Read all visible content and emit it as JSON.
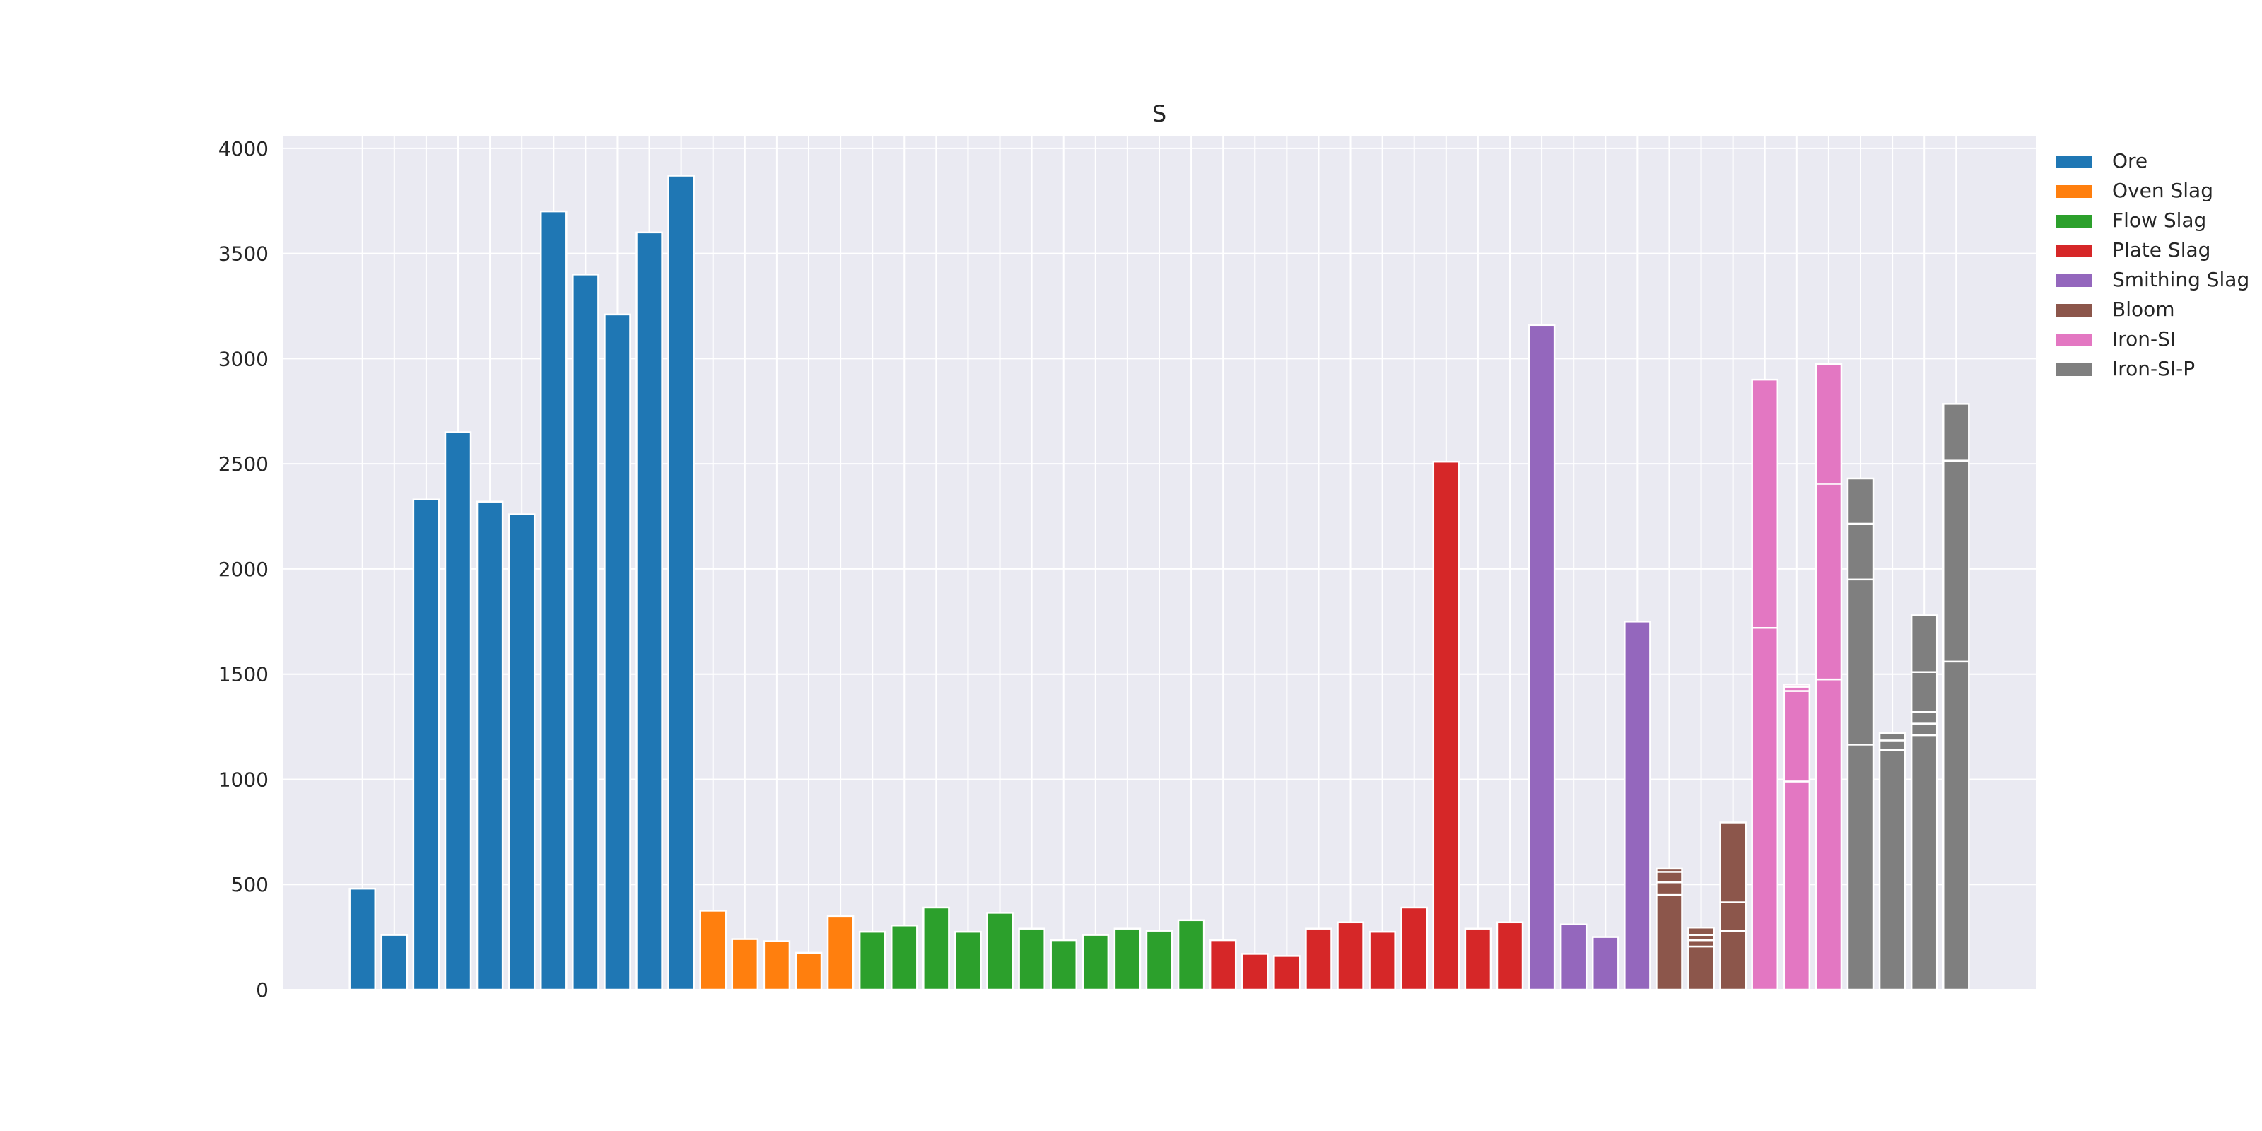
{
  "chart_data": {
    "type": "bar",
    "title": "S",
    "xlabel": "",
    "ylabel": "",
    "ylim": [
      0,
      4060
    ],
    "xlim": [
      -2.5,
      52.5
    ],
    "yticks": [
      0,
      500,
      1000,
      1500,
      2000,
      2500,
      3000,
      3500,
      4000
    ],
    "grid": true,
    "legend_position": "outside-right-top",
    "colors": {
      "Ore": "#1f77b4",
      "Oven Slag": "#ff7f0e",
      "Flow Slag": "#2ca02c",
      "Plate Slag": "#d62728",
      "Smithing Slag": "#9467bd",
      "Bloom": "#8c564b",
      "Iron-SI": "#e377c2",
      "Iron-SI-P": "#7f7f7f"
    },
    "legend": [
      "Ore",
      "Oven Slag",
      "Flow Slag",
      "Plate Slag",
      "Smithing Slag",
      "Bloom",
      "Iron-SI",
      "Iron-SI-P"
    ],
    "bars": [
      {
        "series": "Ore",
        "segments": [
          480
        ]
      },
      {
        "series": "Ore",
        "segments": [
          260
        ]
      },
      {
        "series": "Ore",
        "segments": [
          2330
        ]
      },
      {
        "series": "Ore",
        "segments": [
          2650
        ]
      },
      {
        "series": "Ore",
        "segments": [
          2320
        ]
      },
      {
        "series": "Ore",
        "segments": [
          2260
        ]
      },
      {
        "series": "Ore",
        "segments": [
          3700
        ]
      },
      {
        "series": "Ore",
        "segments": [
          3400
        ]
      },
      {
        "series": "Ore",
        "segments": [
          3210
        ]
      },
      {
        "series": "Ore",
        "segments": [
          3600
        ]
      },
      {
        "series": "Ore",
        "segments": [
          3870
        ]
      },
      {
        "series": "Oven Slag",
        "segments": [
          375
        ]
      },
      {
        "series": "Oven Slag",
        "segments": [
          240
        ]
      },
      {
        "series": "Oven Slag",
        "segments": [
          230
        ]
      },
      {
        "series": "Oven Slag",
        "segments": [
          175
        ]
      },
      {
        "series": "Oven Slag",
        "segments": [
          350
        ]
      },
      {
        "series": "Flow Slag",
        "segments": [
          275
        ]
      },
      {
        "series": "Flow Slag",
        "segments": [
          305
        ]
      },
      {
        "series": "Flow Slag",
        "segments": [
          390
        ]
      },
      {
        "series": "Flow Slag",
        "segments": [
          275
        ]
      },
      {
        "series": "Flow Slag",
        "segments": [
          365
        ]
      },
      {
        "series": "Flow Slag",
        "segments": [
          290
        ]
      },
      {
        "series": "Flow Slag",
        "segments": [
          235
        ]
      },
      {
        "series": "Flow Slag",
        "segments": [
          260
        ]
      },
      {
        "series": "Flow Slag",
        "segments": [
          290
        ]
      },
      {
        "series": "Flow Slag",
        "segments": [
          280
        ]
      },
      {
        "series": "Flow Slag",
        "segments": [
          330
        ]
      },
      {
        "series": "Plate Slag",
        "segments": [
          235
        ]
      },
      {
        "series": "Plate Slag",
        "segments": [
          170
        ]
      },
      {
        "series": "Plate Slag",
        "segments": [
          160
        ]
      },
      {
        "series": "Plate Slag",
        "segments": [
          290
        ]
      },
      {
        "series": "Plate Slag",
        "segments": [
          320
        ]
      },
      {
        "series": "Plate Slag",
        "segments": [
          275
        ]
      },
      {
        "series": "Plate Slag",
        "segments": [
          390
        ]
      },
      {
        "series": "Plate Slag",
        "segments": [
          2510
        ]
      },
      {
        "series": "Plate Slag",
        "segments": [
          290
        ]
      },
      {
        "series": "Plate Slag",
        "segments": [
          320
        ]
      },
      {
        "series": "Smithing Slag",
        "segments": [
          3160
        ]
      },
      {
        "series": "Smithing Slag",
        "segments": [
          310
        ]
      },
      {
        "series": "Smithing Slag",
        "segments": [
          250
        ]
      },
      {
        "series": "Smithing Slag",
        "segments": [
          1750
        ]
      },
      {
        "series": "Bloom",
        "segments": [
          450,
          60,
          50,
          15
        ]
      },
      {
        "series": "Bloom",
        "segments": [
          205,
          30,
          25,
          35
        ]
      },
      {
        "series": "Bloom",
        "segments": [
          280,
          135,
          380
        ]
      },
      {
        "series": "Iron-SI",
        "segments": [
          1720,
          1180
        ]
      },
      {
        "series": "Iron-SI",
        "segments": [
          990,
          430,
          20,
          10
        ]
      },
      {
        "series": "Iron-SI",
        "segments": [
          1475,
          930,
          570
        ]
      },
      {
        "series": "Iron-SI-P",
        "segments": [
          1165,
          785,
          265,
          215
        ]
      },
      {
        "series": "Iron-SI-P",
        "segments": [
          1140,
          45,
          35
        ]
      },
      {
        "series": "Iron-SI-P",
        "segments": [
          1210,
          55,
          55,
          190,
          270
        ]
      },
      {
        "series": "Iron-SI-P",
        "segments": [
          1560,
          955,
          270
        ]
      }
    ]
  }
}
